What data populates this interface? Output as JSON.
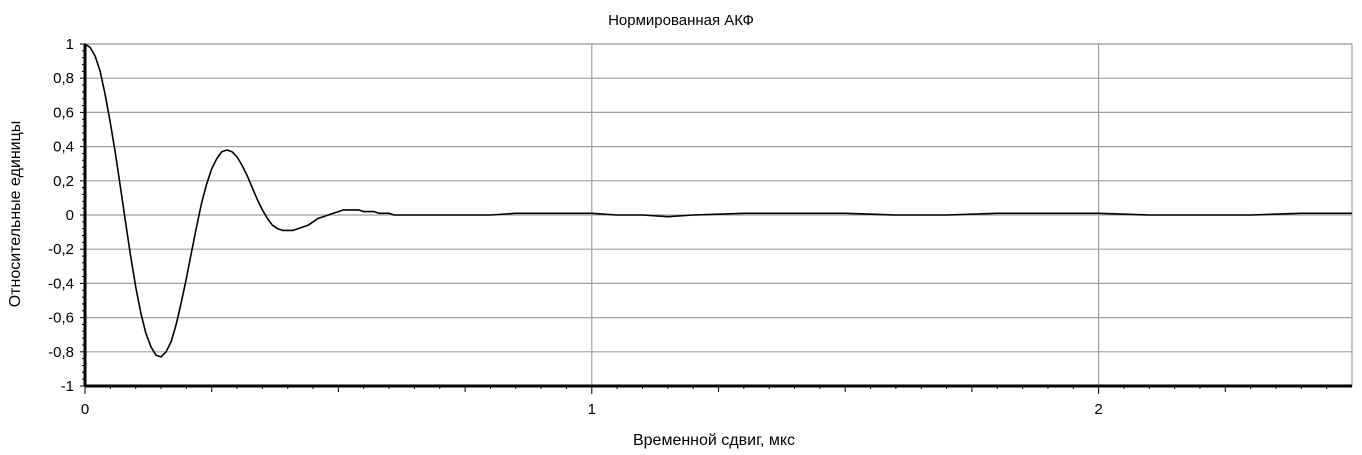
{
  "chart_data": {
    "type": "line",
    "title": "Нормированная АКФ",
    "xlabel": "Временной сдвиг, мкс",
    "ylabel": "Относительные единицы",
    "xlim": [
      0,
      2.5
    ],
    "ylim": [
      -1,
      1
    ],
    "x_ticks": [
      0,
      1,
      2
    ],
    "x_tick_labels": [
      "0",
      "1",
      "2"
    ],
    "y_ticks": [
      1,
      0.8,
      0.6,
      0.4,
      0.2,
      0,
      -0.2,
      -0.4,
      -0.6,
      -0.8,
      -1
    ],
    "y_tick_labels": [
      "1",
      "0,8",
      "0,6",
      "0,4",
      "0,2",
      "0",
      "-0,2",
      "-0,4",
      "-0,6",
      "-0,8",
      "-1"
    ],
    "grid": true,
    "legend": "none",
    "line_color": "#000000",
    "grid_color": "#a0a0a0",
    "series": [
      {
        "x": [
          0,
          0.01,
          0.02,
          0.03,
          0.04,
          0.05,
          0.06,
          0.07,
          0.08,
          0.09,
          0.1,
          0.11,
          0.12,
          0.13,
          0.14,
          0.15,
          0.16,
          0.17,
          0.18,
          0.19,
          0.2,
          0.21,
          0.22,
          0.23,
          0.24,
          0.25,
          0.26,
          0.27,
          0.28,
          0.29,
          0.3,
          0.31,
          0.32,
          0.33,
          0.34,
          0.35,
          0.36,
          0.37,
          0.38,
          0.39,
          0.4,
          0.41,
          0.42,
          0.43,
          0.44,
          0.45,
          0.46,
          0.47,
          0.48,
          0.49,
          0.5,
          0.51,
          0.52,
          0.53,
          0.54,
          0.55,
          0.56,
          0.57,
          0.58,
          0.59,
          0.6,
          0.61,
          0.62,
          0.63,
          0.64,
          0.65,
          0.66,
          0.67,
          0.68,
          0.69,
          0.7,
          0.72,
          0.74,
          0.76,
          0.78,
          0.8,
          0.85,
          0.9,
          0.95,
          1.0,
          1.05,
          1.1,
          1.15,
          1.2,
          1.3,
          1.4,
          1.5,
          1.6,
          1.7,
          1.8,
          1.9,
          2.0,
          2.1,
          2.2,
          2.3,
          2.4,
          2.5
        ],
        "y": [
          1,
          0.98,
          0.93,
          0.84,
          0.7,
          0.54,
          0.36,
          0.16,
          -0.04,
          -0.24,
          -0.42,
          -0.57,
          -0.69,
          -0.77,
          -0.82,
          -0.83,
          -0.8,
          -0.74,
          -0.64,
          -0.51,
          -0.37,
          -0.22,
          -0.07,
          0.07,
          0.18,
          0.27,
          0.33,
          0.37,
          0.38,
          0.37,
          0.34,
          0.29,
          0.23,
          0.16,
          0.09,
          0.03,
          -0.02,
          -0.06,
          -0.08,
          -0.09,
          -0.09,
          -0.09,
          -0.08,
          -0.07,
          -0.06,
          -0.04,
          -0.02,
          -0.01,
          0,
          0.01,
          0.02,
          0.03,
          0.03,
          0.03,
          0.03,
          0.02,
          0.02,
          0.02,
          0.01,
          0.01,
          0.01,
          0,
          0,
          0,
          0,
          0,
          0,
          0,
          0,
          0,
          0,
          0,
          0,
          0,
          0,
          0,
          0.01,
          0.01,
          0.01,
          0.01,
          0,
          0,
          -0.01,
          0,
          0.01,
          0.01,
          0.01,
          0,
          0,
          0.01,
          0.01,
          0.01,
          0,
          0,
          0,
          0.01,
          0.01
        ]
      }
    ]
  }
}
